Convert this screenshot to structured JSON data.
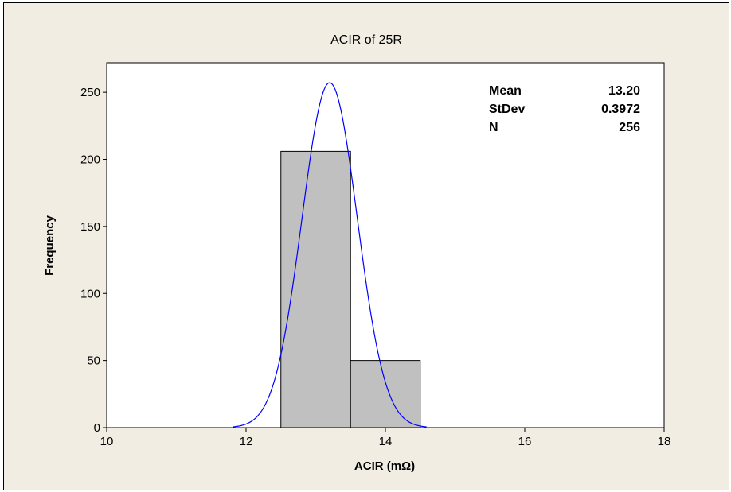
{
  "chart_data": {
    "type": "bar",
    "title": "ACIR of 25R",
    "xlabel": "ACIR (mΩ)",
    "ylabel": "Frequency",
    "xlim": [
      10,
      18
    ],
    "ylim": [
      0,
      272
    ],
    "x_ticks": [
      "10",
      "12",
      "14",
      "16",
      "18"
    ],
    "y_ticks": [
      "0",
      "50",
      "100",
      "150",
      "200",
      "250"
    ],
    "bins": [
      {
        "start": 12.5,
        "end": 13.5,
        "count": 206
      },
      {
        "start": 13.5,
        "end": 14.5,
        "count": 50
      }
    ],
    "fit_curve": {
      "type": "normal",
      "mean": 13.2,
      "stdev": 0.3972,
      "n": 256,
      "bin_width": 1.0,
      "color": "#0000ff"
    },
    "bar_fill": "#c0c0c0",
    "stats": [
      {
        "label": "Mean",
        "value": "13.20"
      },
      {
        "label": "StDev",
        "value": "0.3972"
      },
      {
        "label": "N",
        "value": "256"
      }
    ],
    "grid": false,
    "legend": "top-right stats box"
  }
}
